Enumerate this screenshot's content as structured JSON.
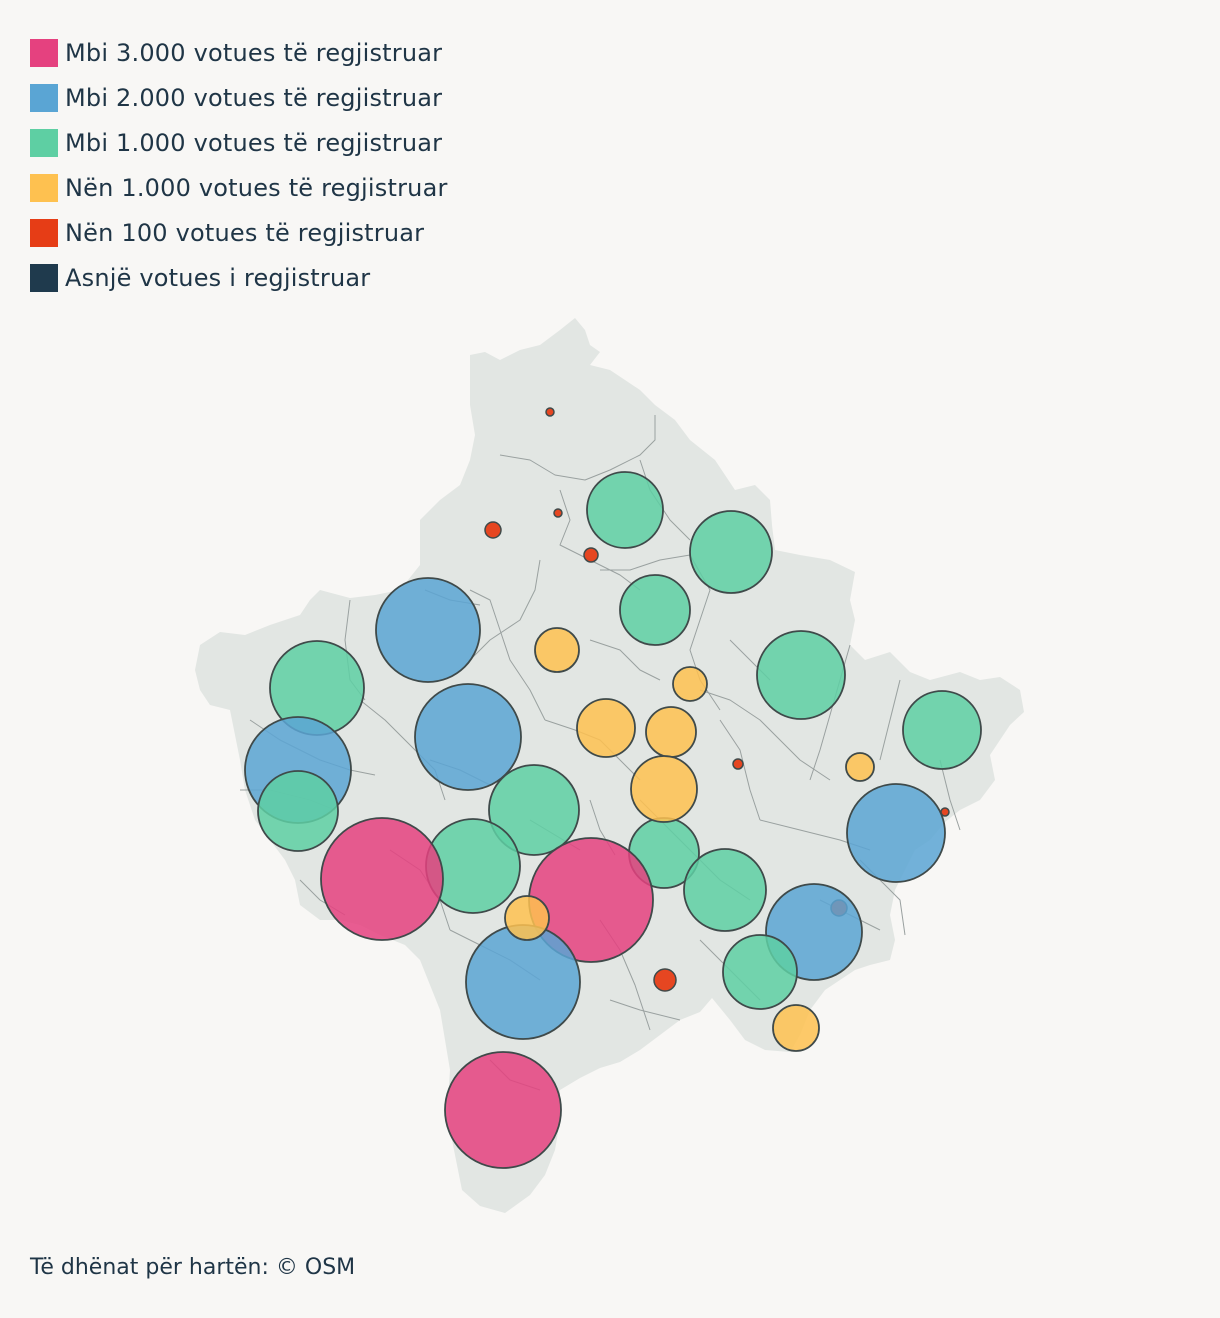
{
  "legend": {
    "items": [
      {
        "label": "Mbi 3.000 votues të regjistruar",
        "color": "#e5417f"
      },
      {
        "label": "Mbi 2.000 votues të regjistruar",
        "color": "#5aa5d4"
      },
      {
        "label": "Mbi 1.000 votues të regjistruar",
        "color": "#5ecfa3"
      },
      {
        "label": "Nën 1.000 votues të regjistruar",
        "color": "#fec150"
      },
      {
        "label": "Nën 100 votues të regjistruar",
        "color": "#e63d16"
      },
      {
        "label": "Asnjë votues i regjistruar",
        "color": "#1f3a4d"
      }
    ]
  },
  "map": {
    "land_color": "#e2e6e3",
    "border_color": "#9aa1a0",
    "marker_stroke": "#3f4a4a"
  },
  "source": {
    "text": "Të dhënat për hartën: © OSM"
  }
}
